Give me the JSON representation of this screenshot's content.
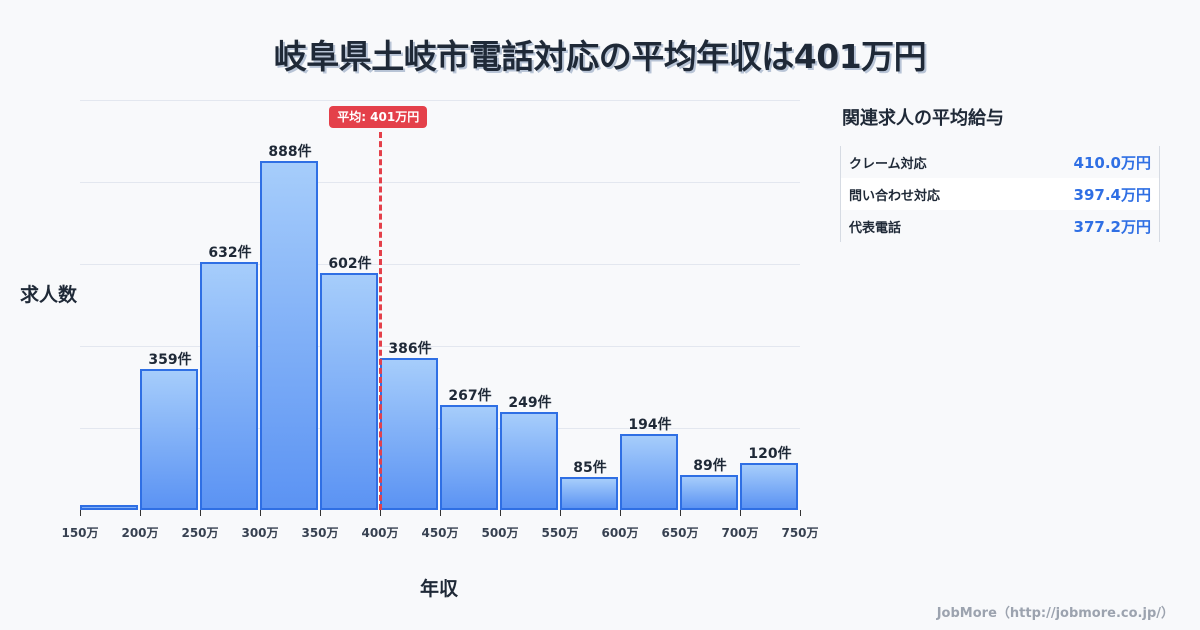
{
  "title": "岐阜県土岐市電話対応の平均年収は401万円",
  "chart_data": {
    "type": "bar",
    "title": "岐阜県土岐市電話対応の平均年収は401万円",
    "xlabel": "年収",
    "ylabel": "求人数",
    "bins": [
      "150-200万",
      "200-250万",
      "250-300万",
      "300-350万",
      "350-400万",
      "400-450万",
      "450-500万",
      "500-550万",
      "550-600万",
      "600-650万",
      "650-700万",
      "700-750万"
    ],
    "x_ticks": [
      "150万",
      "200万",
      "250万",
      "300万",
      "350万",
      "400万",
      "450万",
      "500万",
      "550万",
      "600万",
      "650万",
      "700万",
      "750万"
    ],
    "values": [
      12,
      359,
      632,
      888,
      602,
      386,
      267,
      249,
      85,
      194,
      89,
      120
    ],
    "value_labels": [
      "",
      "359件",
      "632件",
      "888件",
      "602件",
      "386件",
      "267件",
      "249件",
      "85件",
      "194件",
      "89件",
      "120件"
    ],
    "ylim": [
      0,
      1043
    ],
    "grid": true,
    "gridlines": 5,
    "average": {
      "value": 401,
      "label": "平均: 401万円",
      "color": "#e4404a"
    },
    "bar_color": "#5b93f3",
    "bar_border_color": "#2f6fe4"
  },
  "sidebar": {
    "title": "関連求人の平均給与",
    "rows": [
      {
        "name": "クレーム対応",
        "value": "410.0万円"
      },
      {
        "name": "問い合わせ対応",
        "value": "397.4万円"
      },
      {
        "name": "代表電話",
        "value": "377.2万円"
      }
    ]
  },
  "footer": "JobMore（http://jobmore.co.jp/）"
}
